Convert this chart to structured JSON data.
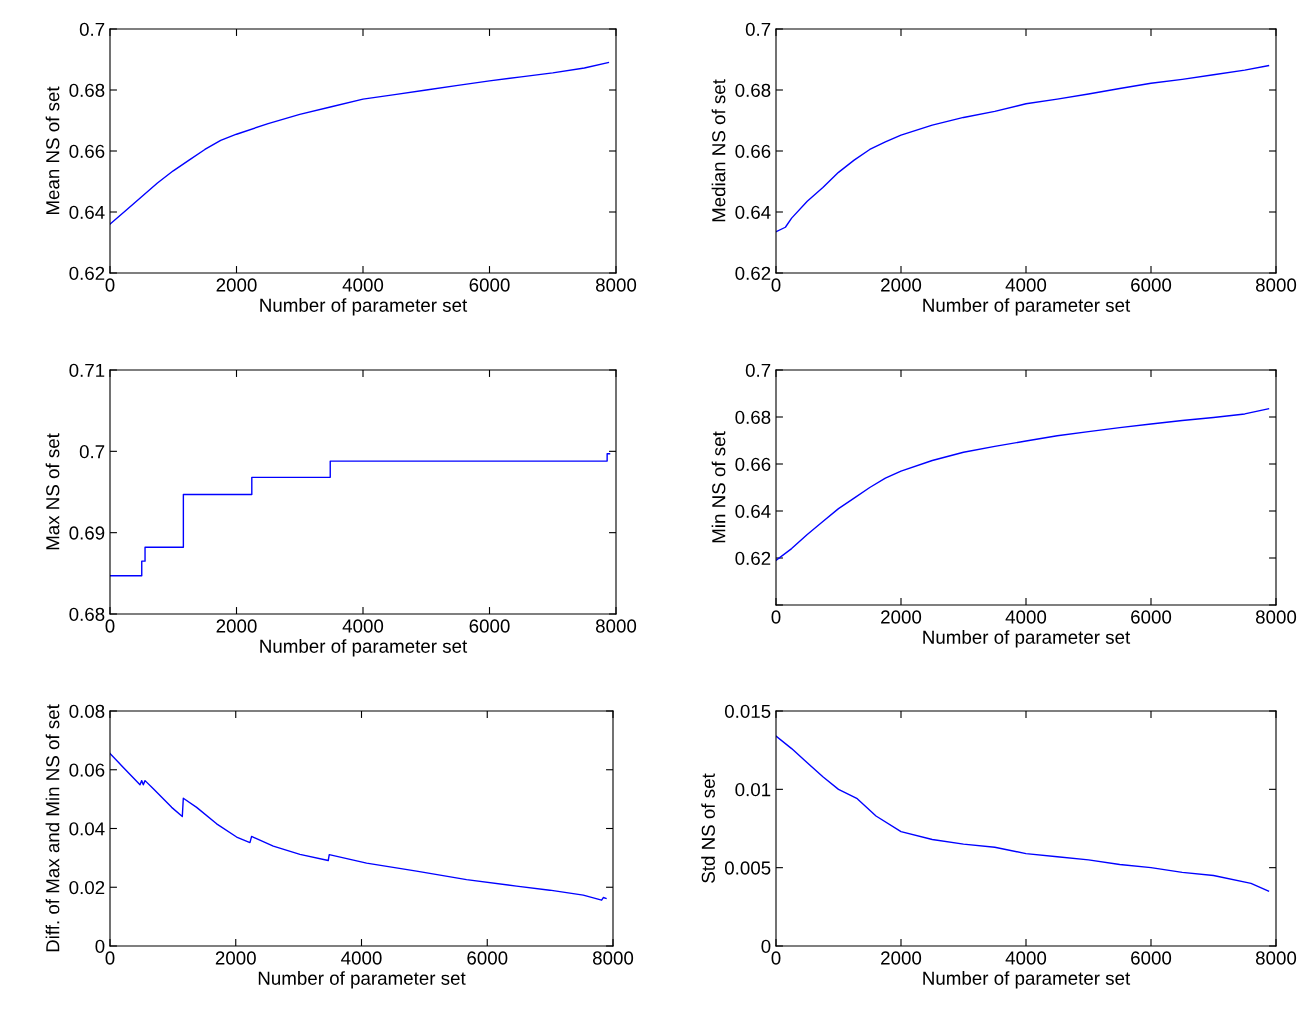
{
  "chart_data": [
    {
      "type": "line",
      "xlabel": "Number of parameter set",
      "ylabel": "Mean NS of set",
      "xlim": [
        0,
        8000
      ],
      "xticks": [
        0,
        2000,
        4000,
        6000,
        8000
      ],
      "ylim": [
        0.62,
        0.7
      ],
      "yticks": [
        0.62,
        0.64,
        0.66,
        0.68,
        0.7
      ],
      "grid": false,
      "series": [
        {
          "color": "#0000ff",
          "x": [
            0,
            250,
            500,
            750,
            1000,
            1250,
            1500,
            1750,
            2000,
            2500,
            3000,
            3500,
            4000,
            4500,
            5000,
            5500,
            6000,
            6500,
            7000,
            7500,
            7880
          ],
          "values": [
            0.636,
            0.6405,
            0.645,
            0.6495,
            0.6535,
            0.657,
            0.6605,
            0.6635,
            0.6655,
            0.669,
            0.672,
            0.6745,
            0.677,
            0.6785,
            0.68,
            0.6815,
            0.683,
            0.6843,
            0.6856,
            0.6872,
            0.689
          ]
        }
      ]
    },
    {
      "type": "line",
      "xlabel": "Number of parameter set",
      "ylabel": "Median NS of set",
      "xlim": [
        0,
        8000
      ],
      "xticks": [
        0,
        2000,
        4000,
        6000,
        8000
      ],
      "ylim": [
        0.62,
        0.7
      ],
      "yticks": [
        0.62,
        0.64,
        0.66,
        0.68,
        0.7
      ],
      "grid": false,
      "series": [
        {
          "color": "#0000ff",
          "x": [
            0,
            150,
            250,
            500,
            750,
            1000,
            1250,
            1500,
            1750,
            2000,
            2500,
            3000,
            3500,
            4000,
            4500,
            5000,
            5500,
            6000,
            6500,
            7000,
            7500,
            7880
          ],
          "values": [
            0.6335,
            0.635,
            0.638,
            0.6435,
            0.648,
            0.653,
            0.657,
            0.6605,
            0.663,
            0.6652,
            0.6685,
            0.671,
            0.673,
            0.6755,
            0.677,
            0.6787,
            0.6805,
            0.6822,
            0.6835,
            0.685,
            0.6865,
            0.688
          ]
        }
      ]
    },
    {
      "type": "step",
      "xlabel": "Number of parameter set",
      "ylabel": "Max NS of set",
      "xlim": [
        0,
        8000
      ],
      "xticks": [
        0,
        2000,
        4000,
        6000,
        8000
      ],
      "ylim": [
        0.68,
        0.71
      ],
      "yticks": [
        0.68,
        0.69,
        0.7,
        0.71
      ],
      "grid": false,
      "series": [
        {
          "color": "#0000ff",
          "x": [
            0,
            502,
            554,
            1160,
            2242,
            3482,
            7860,
            7898
          ],
          "values": [
            0.6847,
            0.6865,
            0.6882,
            0.6947,
            0.6968,
            0.6988,
            0.6997,
            0.6997
          ]
        }
      ]
    },
    {
      "type": "line",
      "xlabel": "Number of parameter set",
      "ylabel": "Min NS of set",
      "xlim": [
        0,
        8000
      ],
      "xticks": [
        0,
        2000,
        4000,
        6000,
        8000
      ],
      "ylim": [
        0.6,
        0.7
      ],
      "yticks": [
        {
          "value": 0.6,
          "label": null
        },
        0.62,
        0.64,
        0.66,
        0.68,
        0.7
      ],
      "grid": false,
      "series": [
        {
          "color": "#0000ff",
          "x": [
            0,
            250,
            500,
            750,
            1000,
            1250,
            1500,
            1750,
            2000,
            2500,
            3000,
            3500,
            4000,
            4500,
            5000,
            5500,
            6000,
            6500,
            7000,
            7500,
            7880
          ],
          "values": [
            0.619,
            0.624,
            0.63,
            0.6355,
            0.641,
            0.6455,
            0.65,
            0.654,
            0.657,
            0.6615,
            0.665,
            0.6675,
            0.6698,
            0.672,
            0.6738,
            0.6755,
            0.677,
            0.6785,
            0.6798,
            0.6813,
            0.6835
          ]
        }
      ]
    },
    {
      "type": "line",
      "xlabel": "Number of parameter set",
      "ylabel": "Diff. of Max and Min NS of set",
      "xlim": [
        0,
        8000
      ],
      "xticks": [
        0,
        2000,
        4000,
        6000,
        8000
      ],
      "ylim": [
        0,
        0.08
      ],
      "yticks": [
        0,
        0.02,
        0.04,
        0.06,
        0.08
      ],
      "grid": false,
      "series": [
        {
          "color": "#0000ff",
          "x": [
            0,
            212,
            477,
            504,
            530,
            557,
            689,
            981,
            1150,
            1166,
            1378,
            1696,
            2014,
            2226,
            2252,
            2597,
            3021,
            3471,
            3487,
            4081,
            4876,
            5671,
            6466,
            6996,
            7527,
            7819,
            7846,
            7889
          ],
          "values": [
            0.0655,
            0.0608,
            0.0549,
            0.0563,
            0.0549,
            0.0563,
            0.0535,
            0.0472,
            0.0441,
            0.0503,
            0.0472,
            0.0416,
            0.0371,
            0.0352,
            0.0373,
            0.034,
            0.0312,
            0.0291,
            0.0311,
            0.0282,
            0.0255,
            0.0226,
            0.0204,
            0.019,
            0.0173,
            0.0156,
            0.0165,
            0.0162
          ]
        }
      ]
    },
    {
      "type": "line",
      "xlabel": "Number of parameter set",
      "ylabel": "Std NS of set",
      "xlim": [
        0,
        8000
      ],
      "xticks": [
        0,
        2000,
        4000,
        6000,
        8000
      ],
      "ylim": [
        0,
        0.015
      ],
      "yticks": [
        0,
        0.005,
        0.01,
        0.015
      ],
      "grid": false,
      "series": [
        {
          "color": "#0000ff",
          "x": [
            0,
            250,
            500,
            750,
            1000,
            1300,
            1600,
            2000,
            2500,
            3000,
            3500,
            4000,
            4500,
            5000,
            5500,
            6000,
            6500,
            7000,
            7600,
            7880
          ],
          "values": [
            0.0134,
            0.0126,
            0.0117,
            0.0108,
            0.01,
            0.0094,
            0.0083,
            0.0073,
            0.0068,
            0.0065,
            0.0063,
            0.0059,
            0.0057,
            0.0055,
            0.0052,
            0.005,
            0.0047,
            0.0045,
            0.004,
            0.0035
          ]
        }
      ]
    }
  ]
}
